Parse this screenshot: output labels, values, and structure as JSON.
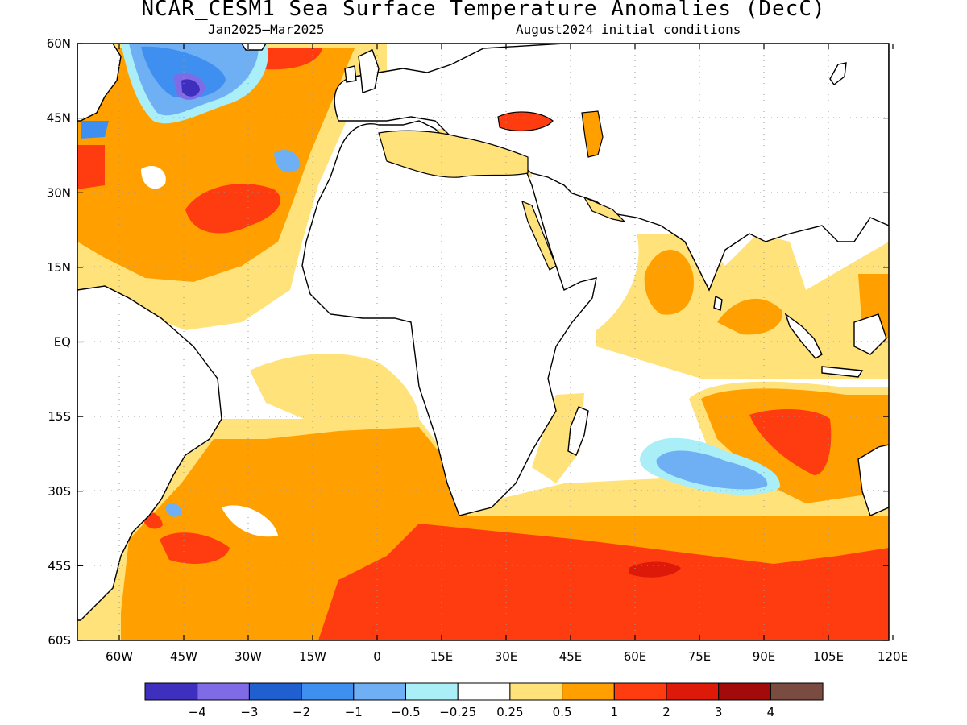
{
  "title": "NCAR_CESM1 Sea Surface Temperature Anomalies (DecC)",
  "period": "Jan2025—Mar2025",
  "initial_conditions": "August2024 initial conditions",
  "lat_labels": [
    "60N",
    "45N",
    "30N",
    "15N",
    "EQ",
    "15S",
    "30S",
    "45S",
    "60S"
  ],
  "lon_labels": [
    "60W",
    "45W",
    "30W",
    "15W",
    "0",
    "15E",
    "30E",
    "45E",
    "60E",
    "75E",
    "90E",
    "105E",
    "120E"
  ],
  "legend_labels": [
    "−4",
    "−3",
    "−2",
    "−1",
    "−0.5",
    "−0.25",
    "0.25",
    "0.5",
    "1",
    "2",
    "3",
    "4"
  ],
  "legend_colors": [
    "#3f2fbf",
    "#7f6be6",
    "#1f5fd0",
    "#3f8ff0",
    "#6fb0f5",
    "#aaeef8",
    "#ffffff",
    "#ffe27a",
    "#ffa000",
    "#ff3b10",
    "#dd1a0a",
    "#a30a0a",
    "#7a4b40"
  ],
  "colors": {
    "land": "#ffffff",
    "ocean_neutral": "#ffffff",
    "light_warm": "#ffe27a",
    "warm": "#ffa000",
    "hot": "#ff3b10",
    "very_hot": "#dd1a0a",
    "cool": "#6fb0f5",
    "cooler": "#3f8ff0",
    "coldest": "#7f6be6",
    "pale_cool": "#aaeef8"
  }
}
